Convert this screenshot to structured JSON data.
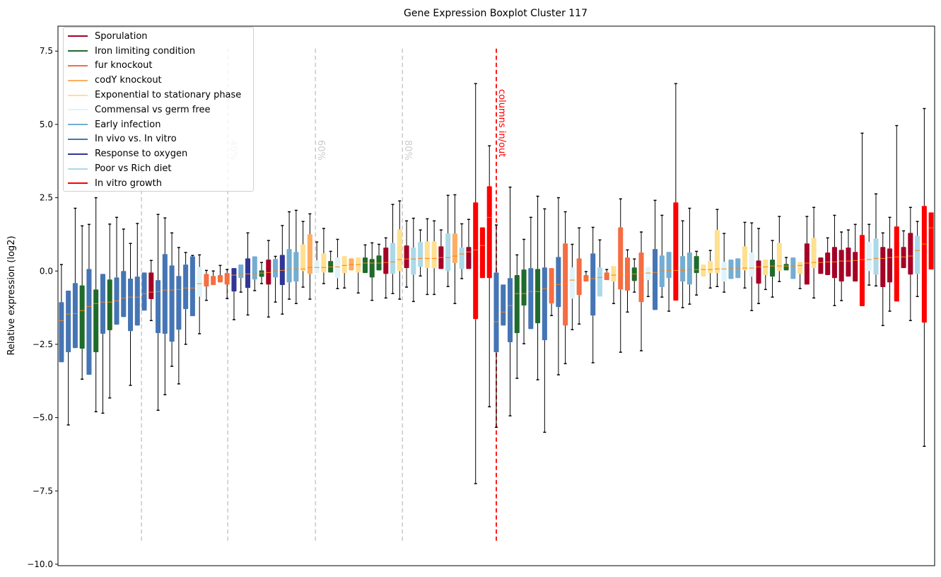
{
  "chart_data": {
    "type": "boxplot",
    "title": "Gene Expression Boxplot Cluster 117",
    "xlabel": "",
    "ylabel": "Relative expression (log2)",
    "ylim": [
      -10.05,
      8.35
    ],
    "xlim": [
      -0.5,
      126.5
    ],
    "yticks": [
      {
        "value": 7.5,
        "label": "7.5"
      },
      {
        "value": 5.0,
        "label": "5.0"
      },
      {
        "value": 2.5,
        "label": "2.5"
      },
      {
        "value": 0.0,
        "label": "0.0"
      },
      {
        "value": -2.5,
        "label": "−2.5"
      },
      {
        "value": -5.0,
        "label": "−5.0"
      },
      {
        "value": -7.5,
        "label": "−7.5"
      },
      {
        "value": -10.0,
        "label": "−10.0"
      }
    ],
    "grid": false,
    "legend_position": "top-left",
    "legend": [
      {
        "key": "S",
        "label": "Sporulation",
        "color": "#a50026"
      },
      {
        "key": "I",
        "label": "Iron limiting condition",
        "color": "#1f6b2b"
      },
      {
        "key": "F",
        "label": "fur knockout",
        "color": "#f46d43"
      },
      {
        "key": "C",
        "label": "codY knockout",
        "color": "#fdae61"
      },
      {
        "key": "E",
        "label": "Exponential to stationary phase",
        "color": "#fee090"
      },
      {
        "key": "M",
        "label": "Commensal vs germ free",
        "color": "#e0f3f8"
      },
      {
        "key": "A",
        "label": "Early infection",
        "color": "#74add1"
      },
      {
        "key": "V",
        "label": "In vivo vs. In vitro",
        "color": "#4575b4"
      },
      {
        "key": "O",
        "label": "Response to oxygen",
        "color": "#313695"
      },
      {
        "key": "P",
        "label": "Poor vs Rich diet",
        "color": "#abd9e9"
      },
      {
        "key": "R",
        "label": "In vitro growth",
        "color": "#ff0000"
      }
    ],
    "median_color": "#ff7f0e",
    "reference_lines": [
      {
        "x": 11.6,
        "label": "",
        "color": "#cccccc"
      },
      {
        "x": 24.1,
        "label": "40%",
        "color": "#cccccc"
      },
      {
        "x": 36.8,
        "label": "60%",
        "color": "#cccccc"
      },
      {
        "x": 49.4,
        "label": "80%",
        "color": "#cccccc"
      },
      {
        "x": 63.0,
        "label": "columns in/out",
        "color": "#ff0000"
      }
    ],
    "reference_line_range": [
      -9.2,
      7.6
    ],
    "box_fields": [
      "group",
      "whisker_low",
      "q1",
      "median",
      "q3",
      "whisker_high"
    ],
    "boxes": [
      [
        "V",
        -3.11,
        -3.11,
        -1.69,
        -1.06,
        0.22
      ],
      [
        "V",
        -5.25,
        -2.77,
        -1.47,
        -0.67,
        -0.67
      ],
      [
        "V",
        -2.63,
        -2.63,
        -1.45,
        -0.41,
        2.14
      ],
      [
        "I",
        -3.69,
        -2.65,
        -1.35,
        -0.49,
        1.54
      ],
      [
        "V",
        -3.54,
        -3.54,
        -1.21,
        0.07,
        1.59
      ],
      [
        "I",
        -4.8,
        -2.77,
        -1.11,
        -0.63,
        2.5
      ],
      [
        "V",
        -4.85,
        -2.14,
        -1.06,
        -0.1,
        -0.1
      ],
      [
        "I",
        -4.33,
        -2.02,
        -1.06,
        -0.29,
        1.6
      ],
      [
        "V",
        -1.83,
        -1.83,
        -1.02,
        -0.22,
        1.83
      ],
      [
        "V",
        -1.57,
        -1.57,
        -0.92,
        0,
        1.43
      ],
      [
        "V",
        -3.9,
        -2.05,
        -0.89,
        -0.26,
        0.94
      ],
      [
        "V",
        -1.86,
        -1.86,
        -0.89,
        -0.19,
        1.62
      ],
      [
        "V",
        -1.35,
        -1.35,
        -0.77,
        -0.05,
        -0.05
      ],
      [
        "S",
        -1.69,
        -0.96,
        -0.72,
        -0.05,
        0.36
      ],
      [
        "V",
        -4.75,
        -2.12,
        -0.7,
        -0.31,
        1.93
      ],
      [
        "V",
        -4.22,
        -2.14,
        -0.65,
        0.58,
        1.81
      ],
      [
        "V",
        -3.25,
        -2.41,
        -0.65,
        0.19,
        1.3
      ],
      [
        "V",
        -3.85,
        -2.0,
        -0.63,
        -0.17,
        0.8
      ],
      [
        "V",
        -2.5,
        -1.3,
        -0.58,
        0.22,
        0.63
      ],
      [
        "V",
        -1.54,
        -1.54,
        -0.58,
        0.5,
        0.53
      ],
      [
        "M",
        -2.14,
        -0.87,
        -0.43,
        0.14,
        0.55
      ],
      [
        "F",
        -1.0,
        -0.53,
        -0.29,
        -0.1,
        0.02
      ],
      [
        "F",
        -0.48,
        -0.48,
        -0.29,
        -0.17,
        0.0
      ],
      [
        "F",
        -0.39,
        -0.39,
        -0.27,
        -0.14,
        0.19
      ],
      [
        "F",
        -0.94,
        -0.46,
        -0.24,
        -0.07,
        0.05
      ],
      [
        "O",
        -1.66,
        -0.7,
        -0.14,
        0.1,
        0.1
      ],
      [
        "A",
        -0.72,
        -0.24,
        -0.1,
        0.22,
        0.22
      ],
      [
        "O",
        -1.5,
        -0.58,
        -0.1,
        0.43,
        1.3
      ],
      [
        "A",
        -0.67,
        -0.29,
        -0.1,
        0.5,
        0.5
      ],
      [
        "I",
        -0.43,
        -0.2,
        -0.07,
        0.02,
        0.29
      ],
      [
        "S",
        -1.57,
        -0.46,
        -0.05,
        0.39,
        1.04
      ],
      [
        "A",
        -1.06,
        -0.22,
        0,
        0.41,
        0.5
      ],
      [
        "O",
        -1.47,
        -0.48,
        0.02,
        0.55,
        1.55
      ],
      [
        "A",
        -0.96,
        -0.39,
        0.05,
        0.75,
        2.02
      ],
      [
        "A",
        -1.11,
        -0.36,
        0.07,
        0.65,
        2.07
      ],
      [
        "E",
        -0.55,
        0,
        0.07,
        0.91,
        1.69
      ],
      [
        "C",
        -0.96,
        -0.1,
        0.12,
        1.25,
        1.95
      ],
      [
        "M",
        -0.07,
        -0.07,
        0.12,
        0.36,
        0.99
      ],
      [
        "E",
        -0.43,
        -0.05,
        0.12,
        0.6,
        1.45
      ],
      [
        "I",
        -0.05,
        -0.05,
        0.14,
        0.34,
        0.67
      ],
      [
        "M",
        -0.6,
        -0.24,
        0.14,
        0.46,
        1.08
      ],
      [
        "E",
        -0.58,
        -0.07,
        0.19,
        0.51,
        0.51
      ],
      [
        "C",
        0.02,
        0.02,
        0.22,
        0.43,
        0.43
      ],
      [
        "E",
        -0.75,
        -0.05,
        0.22,
        0.46,
        0.46
      ],
      [
        "I",
        -0.07,
        -0.07,
        0.27,
        0.46,
        0.89
      ],
      [
        "I",
        -1.0,
        -0.22,
        0.27,
        0.41,
        0.96
      ],
      [
        "I",
        0.02,
        0.02,
        0.27,
        0.53,
        0.91
      ],
      [
        "S",
        -0.92,
        -0.1,
        0.29,
        0.8,
        1.13
      ],
      [
        "P",
        -0.77,
        -0.1,
        0.31,
        0.96,
        2.27
      ],
      [
        "E",
        -0.96,
        0,
        0.39,
        1.42,
        2.39
      ],
      [
        "S",
        -0.55,
        0.1,
        0.41,
        0.87,
        1.71
      ],
      [
        "P",
        -1.04,
        -0.12,
        0.41,
        0.8,
        1.8
      ],
      [
        "P",
        -0.17,
        0.14,
        0.43,
        0.99,
        1.4
      ],
      [
        "E",
        -0.8,
        0.1,
        0.43,
        1.01,
        1.78
      ],
      [
        "E",
        -0.8,
        0.1,
        0.43,
        1.01,
        1.71
      ],
      [
        "S",
        0.07,
        0.07,
        0.46,
        0.84,
        1.4
      ],
      [
        "P",
        -0.53,
        0,
        0.46,
        1.28,
        2.58
      ],
      [
        "C",
        -1.11,
        0.27,
        0.51,
        1.28,
        2.6
      ],
      [
        "P",
        -0.26,
        0.07,
        0.58,
        0.8,
        1.61
      ],
      [
        "S",
        0.07,
        0.07,
        0.65,
        0.82,
        1.76
      ],
      [
        "R",
        -7.25,
        -1.64,
        0.72,
        2.34,
        6.39
      ],
      [
        "R",
        -0.24,
        -0.24,
        0.87,
        1.49,
        1.49
      ],
      [
        "R",
        -4.63,
        -0.24,
        1.83,
        2.89,
        4.27
      ],
      [
        "V",
        -5.33,
        -2.77,
        -1.73,
        -0.05,
        1.57
      ],
      [
        "V",
        -1.86,
        -1.86,
        -1.4,
        -0.46,
        -0.46
      ],
      [
        "V",
        -4.94,
        -2.43,
        -1.18,
        -0.24,
        2.86
      ],
      [
        "I",
        -3.66,
        -2.12,
        -0.77,
        -0.14,
        0.55
      ],
      [
        "I",
        -2.48,
        -1.18,
        -0.77,
        0.05,
        1.08
      ],
      [
        "V",
        -1.98,
        -1.98,
        -0.7,
        0.1,
        1.83
      ],
      [
        "I",
        -3.71,
        -1.78,
        -0.7,
        0.07,
        2.55
      ],
      [
        "V",
        -5.5,
        -2.36,
        -0.6,
        0.12,
        2.12
      ],
      [
        "F",
        -1.52,
        -1.11,
        -0.48,
        0.1,
        0.1
      ],
      [
        "V",
        -3.54,
        -1.23,
        -0.46,
        0.48,
        2.5
      ],
      [
        "F",
        -3.16,
        -1.86,
        -0.43,
        0.94,
        2.02
      ],
      [
        "M",
        -2.0,
        -0.94,
        -0.31,
        0.12,
        0.91
      ],
      [
        "F",
        -1.81,
        -0.82,
        -0.29,
        0.43,
        1.47
      ],
      [
        "F",
        -0.36,
        -0.36,
        -0.26,
        -0.14,
        -0.02
      ],
      [
        "V",
        -3.13,
        -1.52,
        -0.26,
        0.6,
        1.49
      ],
      [
        "P",
        -0.87,
        -0.87,
        -0.22,
        0.12,
        1.06
      ],
      [
        "F",
        -0.31,
        -0.31,
        -0.14,
        -0.05,
        0.05
      ],
      [
        "E",
        -1.11,
        -0.36,
        -0.14,
        0.17,
        0.17
      ],
      [
        "F",
        -2.77,
        -0.63,
        -0.12,
        1.49,
        2.46
      ],
      [
        "F",
        -1.4,
        -0.67,
        -0.1,
        0.46,
        0.72
      ],
      [
        "I",
        -0.72,
        -0.34,
        -0.1,
        0.12,
        0.41
      ],
      [
        "F",
        -2.72,
        -1.06,
        -0.07,
        0.63,
        1.33
      ],
      [
        "M",
        -0.87,
        -0.31,
        -0.07,
        0.14,
        0.14
      ],
      [
        "V",
        -1.33,
        -1.33,
        -0.05,
        0.75,
        2.41
      ],
      [
        "A",
        -0.89,
        -0.55,
        0,
        0.53,
        1.9
      ],
      [
        "A",
        -1.37,
        -0.24,
        0.02,
        0.65,
        0.65
      ],
      [
        "R",
        -1.01,
        -1.01,
        0.02,
        2.34,
        6.39
      ],
      [
        "A",
        -1.25,
        -0.36,
        0.02,
        0.51,
        1.71
      ],
      [
        "A",
        -1.13,
        -0.46,
        0.05,
        0.63,
        2.14
      ],
      [
        "I",
        -0.82,
        -0.07,
        0.05,
        0.51,
        0.67
      ],
      [
        "E",
        -0.19,
        -0.19,
        0.05,
        0.22,
        0.22
      ],
      [
        "E",
        -0.58,
        -0.07,
        0.05,
        0.34,
        0.7
      ],
      [
        "E",
        -0.53,
        -0.07,
        0.07,
        1.4,
        2.1
      ],
      [
        "M",
        -0.72,
        -0.36,
        0.07,
        0.31,
        1.28
      ],
      [
        "A",
        -0.27,
        -0.27,
        0.1,
        0.39,
        0.39
      ],
      [
        "A",
        -0.24,
        -0.24,
        0.1,
        0.43,
        0.43
      ],
      [
        "E",
        -0.58,
        0.02,
        0.1,
        0.84,
        1.66
      ],
      [
        "M",
        -1.35,
        -0.19,
        0.1,
        0.63,
        1.64
      ],
      [
        "S",
        -1.11,
        -0.43,
        0.14,
        0.36,
        1.45
      ],
      [
        "E",
        -0.63,
        -0.14,
        0.14,
        0.39,
        0.39
      ],
      [
        "I",
        -0.89,
        -0.19,
        0.17,
        0.39,
        1.04
      ],
      [
        "E",
        -0.36,
        0,
        0.17,
        0.96,
        1.86
      ],
      [
        "I",
        0.02,
        0.02,
        0.17,
        0.24,
        0.46
      ],
      [
        "A",
        -0.27,
        -0.27,
        0.17,
        0.46,
        0.46
      ],
      [
        "E",
        -0.6,
        -0.1,
        0.19,
        0.31,
        0.31
      ],
      [
        "S",
        -0.46,
        -0.46,
        0.27,
        0.94,
        1.86
      ],
      [
        "E",
        -0.92,
        0.1,
        0.29,
        1.13,
        2.17
      ],
      [
        "S",
        -0.1,
        -0.1,
        0.29,
        0.46,
        0.46
      ],
      [
        "S",
        -0.14,
        -0.14,
        0.31,
        0.63,
        1.13
      ],
      [
        "S",
        -1.18,
        -0.24,
        0.31,
        0.82,
        1.9
      ],
      [
        "S",
        -1.01,
        -0.36,
        0.34,
        0.72,
        1.33
      ],
      [
        "S",
        -0.19,
        -0.19,
        0.34,
        0.8,
        1.4
      ],
      [
        "S",
        -0.36,
        -0.36,
        0.36,
        0.65,
        1.59
      ],
      [
        "R",
        -1.2,
        -1.2,
        0.39,
        1.23,
        4.7
      ],
      [
        "M",
        -0.48,
        0,
        0.39,
        0.99,
        1.59
      ],
      [
        "P",
        -0.51,
        -0.12,
        0.43,
        1.11,
        2.63
      ],
      [
        "S",
        -1.86,
        -0.55,
        0.43,
        0.82,
        1.3
      ],
      [
        "S",
        -1.37,
        -0.39,
        0.46,
        0.77,
        1.83
      ],
      [
        "R",
        -1.04,
        -1.04,
        0.48,
        1.52,
        4.96
      ],
      [
        "S",
        0.1,
        0.1,
        0.48,
        0.82,
        1.37
      ],
      [
        "S",
        -1.69,
        -0.12,
        0.51,
        1.3,
        2.17
      ],
      [
        "P",
        -0.87,
        -0.1,
        0.7,
        1.2,
        1.69
      ],
      [
        "R",
        -5.98,
        -1.76,
        0.92,
        2.22,
        5.54
      ],
      [
        "R",
        0.05,
        0.05,
        1.47,
        2.0,
        2.0
      ]
    ]
  }
}
